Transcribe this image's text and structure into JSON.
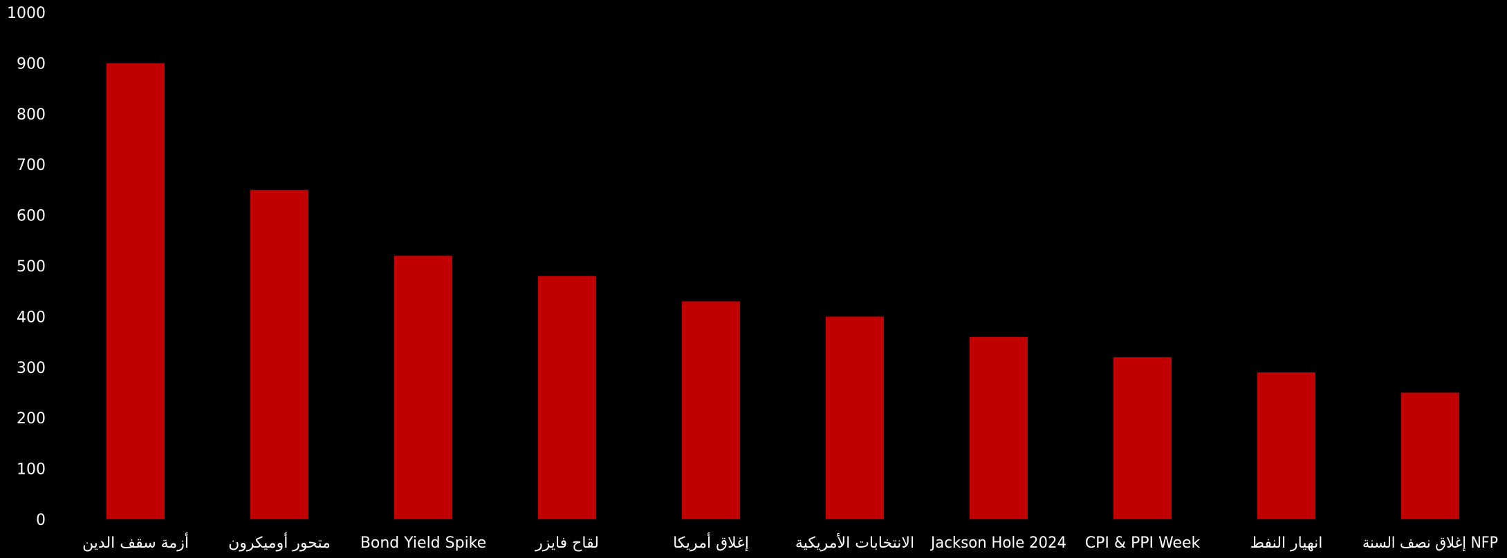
{
  "chart_data": {
    "type": "bar",
    "title": "",
    "xlabel": "",
    "ylabel": "",
    "categories": [
      "أزمة سقف الدين",
      "متحور أوميكرون",
      "Bond Yield Spike",
      "لقاح فايزر",
      "إغلاق أمريكا",
      "الانتخابات الأمريكية",
      "Jackson Hole 2024",
      "CPI & PPI Week",
      "انهيار النفط",
      "إغلاق نصف السنة NFP"
    ],
    "values": [
      900,
      650,
      520,
      480,
      430,
      400,
      360,
      320,
      290,
      250
    ],
    "ylim": [
      0,
      1000
    ],
    "yticks": [
      "0",
      "100",
      "200",
      "300",
      "400",
      "500",
      "600",
      "700",
      "800",
      "900",
      "1000"
    ],
    "bar_color": "#c00000",
    "background_color": "#000000",
    "text_color": "#ffffff",
    "grid": false,
    "legend": "none"
  }
}
